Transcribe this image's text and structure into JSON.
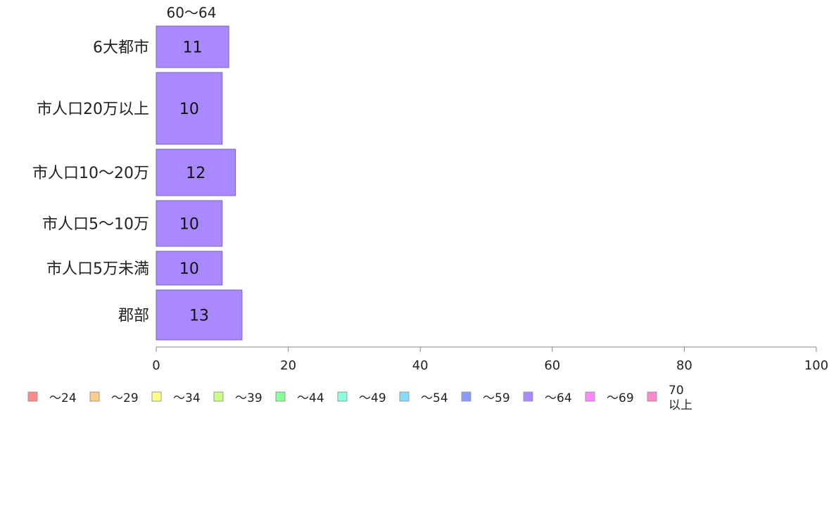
{
  "chart_data": {
    "type": "bar",
    "orientation": "horizontal",
    "stacked": true,
    "categories": [
      "6大都市",
      "市人口20万以上",
      "市人口10〜20万",
      "市人口5〜10万",
      "市人口5万未満",
      "郡部"
    ],
    "series": [
      {
        "name": "60〜64",
        "color": "#aa88ff",
        "values": [
          11,
          10,
          12,
          10,
          10,
          13
        ]
      }
    ],
    "series_header": "60〜64",
    "xlim": [
      0,
      100
    ],
    "xticks": [
      0,
      20,
      40,
      60,
      80,
      100
    ],
    "xlabel": "",
    "ylabel": "",
    "title": "",
    "grid": false,
    "legend": {
      "position": "bottom",
      "items": [
        {
          "label": "〜24",
          "color": "#ff8888"
        },
        {
          "label": "〜29",
          "color": "#ffcc88"
        },
        {
          "label": "〜34",
          "color": "#ffff88"
        },
        {
          "label": "〜39",
          "color": "#ccff88"
        },
        {
          "label": "〜44",
          "color": "#88ff99"
        },
        {
          "label": "〜49",
          "color": "#88ffdd"
        },
        {
          "label": "〜54",
          "color": "#88ddff"
        },
        {
          "label": "〜59",
          "color": "#8899ff"
        },
        {
          "label": "〜64",
          "color": "#aa88ff"
        },
        {
          "label": "〜69",
          "color": "#ff88ff"
        },
        {
          "label": "70\n以上",
          "color": "#ff88cc"
        }
      ]
    }
  }
}
